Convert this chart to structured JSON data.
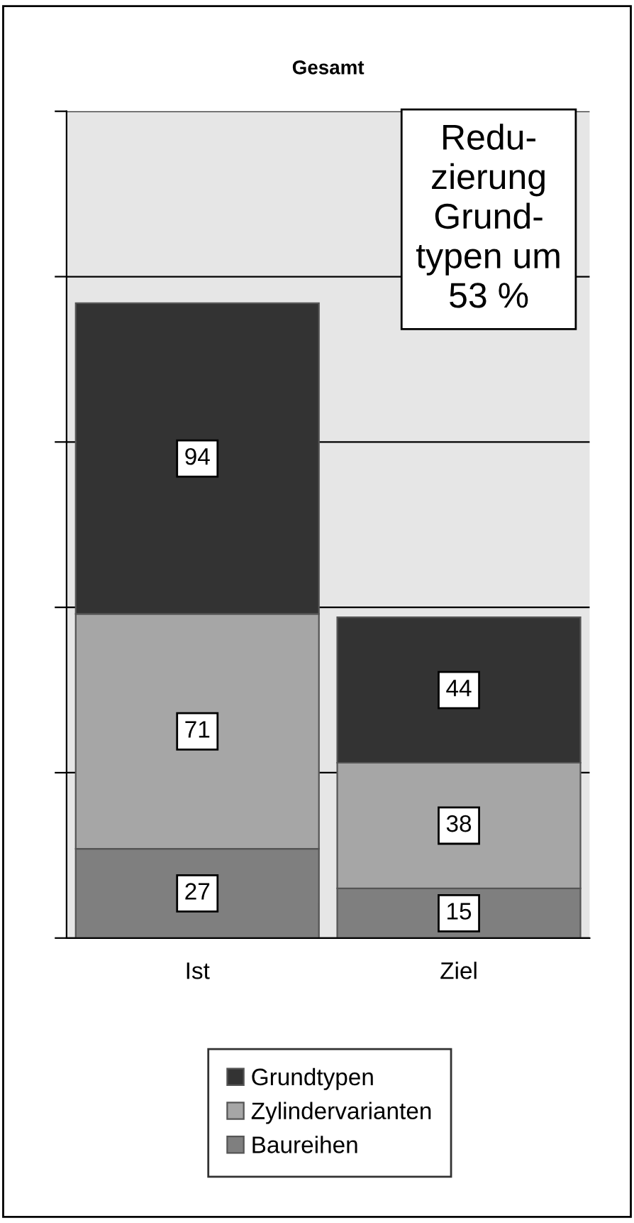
{
  "chart_data": {
    "type": "bar",
    "title": "Gesamt",
    "categories": [
      "Ist",
      "Ziel"
    ],
    "stacked": true,
    "series": [
      {
        "name": "Baureihen",
        "color": "#7f7f7f",
        "values": [
          27,
          15
        ]
      },
      {
        "name": "Zylindervarianten",
        "color": "#a6a6a6",
        "values": [
          71,
          38
        ]
      },
      {
        "name": "Grundtypen",
        "color": "#333333",
        "values": [
          94,
          44
        ]
      }
    ],
    "ylim": [
      0,
      250
    ],
    "yticks": [
      {
        "value": 0,
        "label": null
      },
      {
        "value": 50,
        "label": null
      },
      {
        "value": 100,
        "label": null
      },
      {
        "value": 150,
        "label": null
      },
      {
        "value": 200,
        "label": null
      },
      {
        "value": 250,
        "label": null
      }
    ],
    "tick_labels": "x",
    "grid": "y",
    "data_labels": true,
    "legend": "bottom",
    "annotations": [
      "Redu-\nzierung\nGrund-\ntypen um\n53 %"
    ]
  }
}
